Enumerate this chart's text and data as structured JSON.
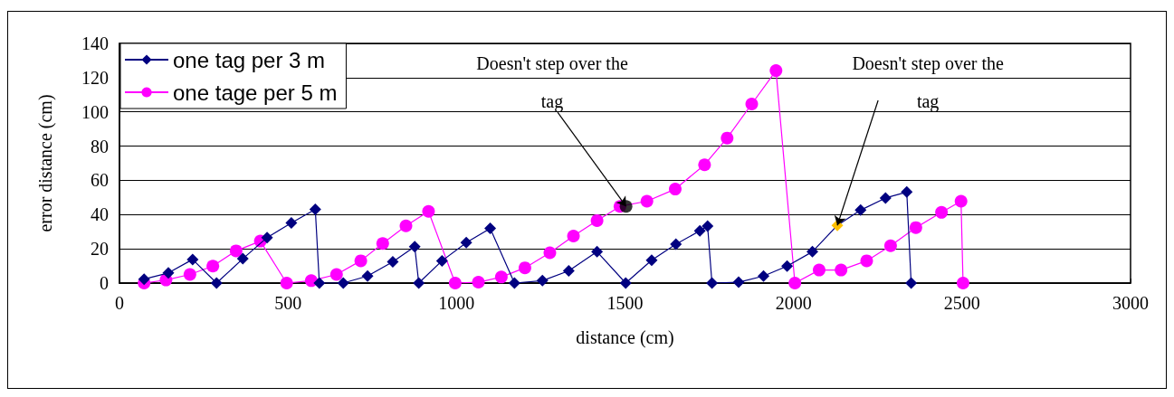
{
  "chart_data": {
    "type": "line",
    "xlabel": "distance (cm)",
    "ylabel": "error distance (cm)",
    "xlim": [
      0,
      3000
    ],
    "xticks": [
      0,
      500,
      1000,
      1500,
      2000,
      2500,
      3000
    ],
    "ylim": [
      0,
      140
    ],
    "yticks": [
      0,
      20,
      40,
      60,
      80,
      100,
      120,
      140
    ],
    "grid": "y",
    "legend": "top left",
    "series": [
      {
        "name": "one tag per 3 m",
        "color": "#000080",
        "colors": [
          "#000080",
          "#000080",
          "#000080",
          "#000080",
          "#000080",
          "#000080",
          "#000080",
          "#000080",
          "#000080",
          "#000080",
          "#000080",
          "#000080",
          "#000080",
          "#000080",
          "#000080",
          "#000080",
          "#000080",
          "#000080",
          "#000080",
          "#000080",
          "#000080",
          "#000080",
          "#000080",
          "#000080",
          "#000080",
          "#000080",
          "#000080",
          "#000080",
          "#000080",
          "#000080",
          "#000080",
          "#ffc000",
          "#000080",
          "#000080",
          "#000080",
          "#000080"
        ],
        "marker": "diamond",
        "x": [
          73,
          145,
          217,
          288,
          366,
          438,
          510,
          581,
          593,
          664,
          736,
          811,
          876,
          888,
          957,
          1029,
          1100,
          1172,
          1255,
          1333,
          1417,
          1502,
          1579,
          1651,
          1722,
          1745,
          1758,
          1837,
          1911,
          1981,
          2056,
          2130,
          2199,
          2273,
          2336,
          2349
        ],
        "values": [
          2.3,
          5.9,
          13.8,
          0,
          14.2,
          26.6,
          35.1,
          43.1,
          0,
          0,
          4.1,
          12.4,
          21.3,
          0,
          13,
          23.6,
          31.9,
          0,
          1.4,
          7.1,
          18.3,
          0,
          13.3,
          22.7,
          30.5,
          33.3,
          0,
          0.5,
          4.1,
          9.9,
          18.3,
          33.7,
          42.6,
          49.7,
          53.2,
          0
        ]
      },
      {
        "name": "one tage per 5 m",
        "color": "#ff00ff",
        "marker": "circle",
        "x": [
          73,
          138,
          209,
          277,
          346,
          418,
          496,
          569,
          644,
          716,
          781,
          850,
          917,
          996,
          1065,
          1133,
          1203,
          1277,
          1347,
          1417,
          1485,
          1565,
          1649,
          1736,
          1803,
          1876,
          1948,
          2004,
          2076,
          2141,
          2217,
          2288,
          2363,
          2439,
          2497,
          2503
        ],
        "values": [
          0,
          1.8,
          5,
          9.9,
          18.8,
          24.5,
          0,
          1.4,
          5,
          13,
          23.1,
          33.4,
          41.9,
          0,
          0.5,
          3.5,
          8.9,
          17.7,
          27.5,
          36.5,
          44.8,
          47.8,
          54.9,
          69.1,
          84.7,
          104.6,
          124.1,
          0,
          7.6,
          7.6,
          13,
          21.8,
          32.4,
          41.3,
          47.8,
          0
        ]
      },
      {
        "type": "scatter",
        "color": "#000000",
        "marker": "circle",
        "x": [
          1503
        ],
        "values": [
          44.8
        ]
      }
    ],
    "annotations": [
      {
        "text": "Doesn't step over the tag",
        "x": 1503,
        "y": 44.8
      },
      {
        "text": "Doesn't step over the tag",
        "x": 2130,
        "y": 33.7
      }
    ]
  }
}
